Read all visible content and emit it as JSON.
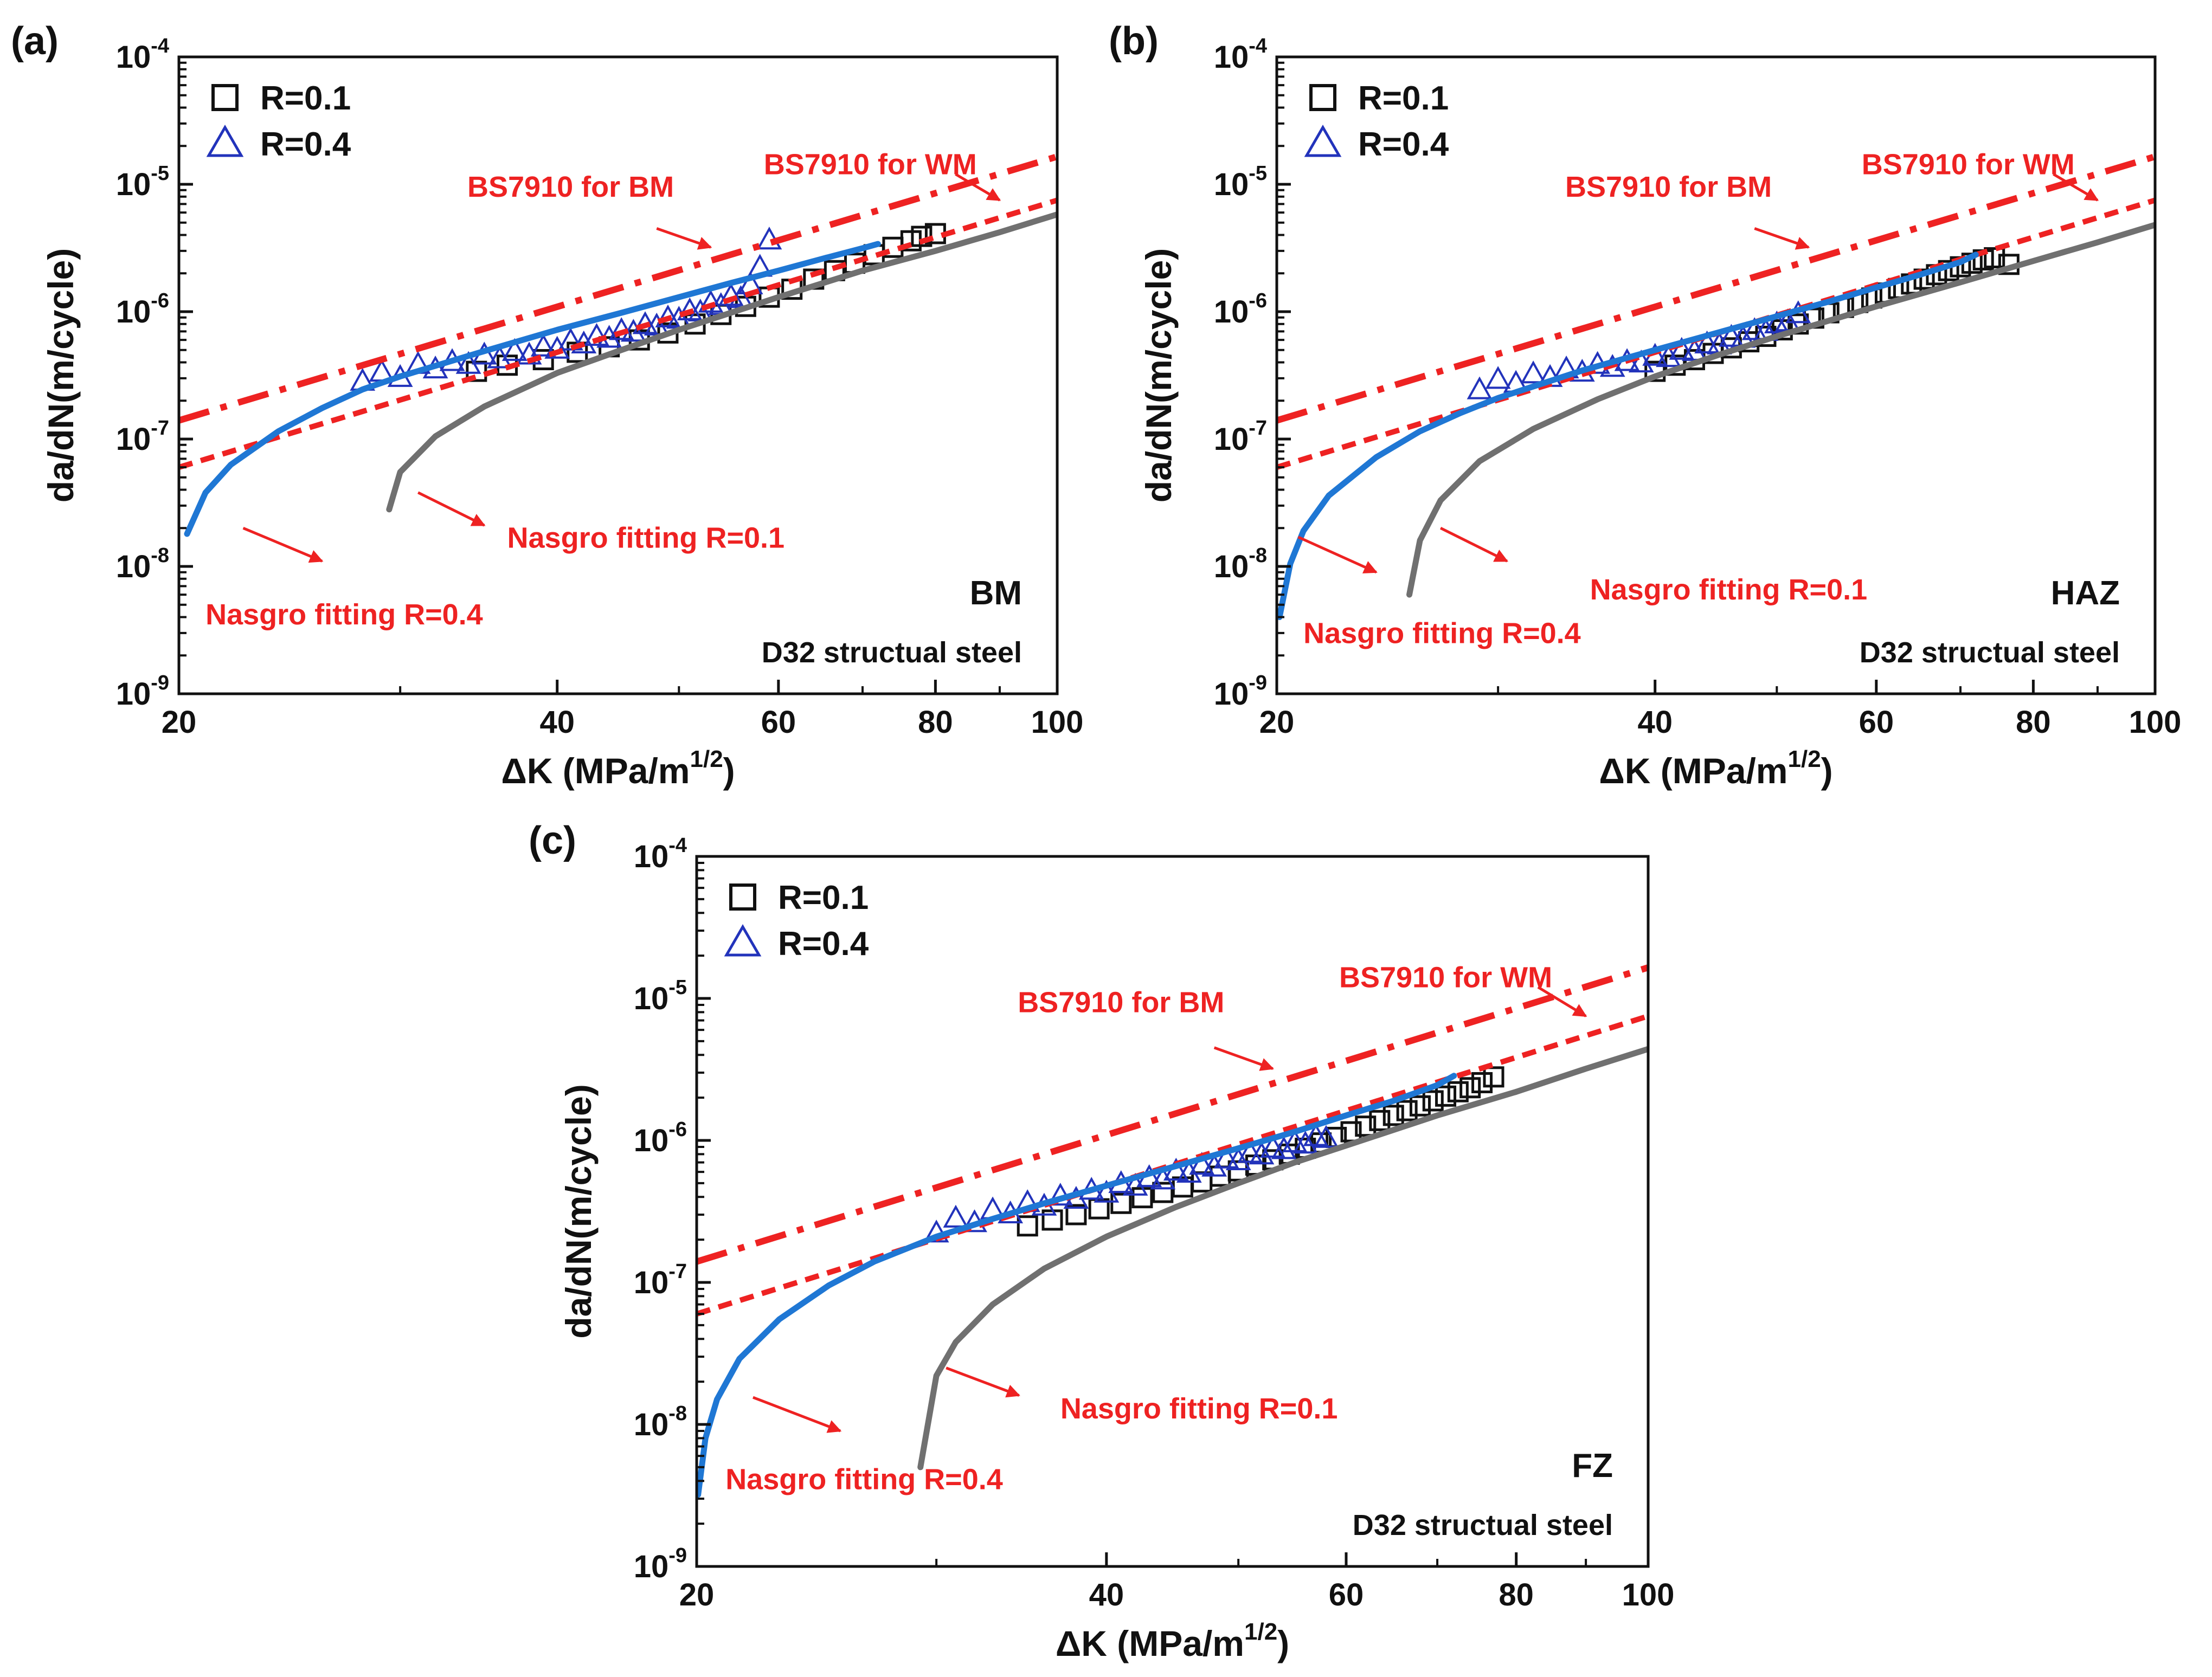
{
  "styles": {
    "r01_marker_color": "#111111",
    "r04_marker_color": "#2233bb",
    "bs7910_color": "#ee2222",
    "annotation_color": "#ee2222",
    "nasgro_r01_color": "#707070",
    "nasgro_r04_color": "#1f77d4"
  },
  "chart_data": [
    {
      "type": "scatter",
      "panel_label": "(a)",
      "region": "BM",
      "material": "D32 structual steel",
      "xlabel": "ΔK (MPa/m",
      "xlabel_sup": "1/2",
      "xlabel_close": ")",
      "ylabel": "da/dN(m/cycle)",
      "xlim": [
        20,
        100
      ],
      "ylim": [
        1e-09,
        0.0001
      ],
      "yscale": "log",
      "xticks": [
        20,
        40,
        60,
        80,
        100
      ],
      "yticks": [
        1e-09,
        1e-08,
        1e-07,
        1e-06,
        1e-05,
        0.0001
      ],
      "ytick_labels": [
        {
          "base": "10",
          "exp": "-9"
        },
        {
          "base": "10",
          "exp": "-8"
        },
        {
          "base": "10",
          "exp": "-7"
        },
        {
          "base": "10",
          "exp": "-6"
        },
        {
          "base": "10",
          "exp": "-5"
        },
        {
          "base": "10",
          "exp": "-4"
        }
      ],
      "legend": {
        "position": "top-left",
        "entries": [
          "R=0.1",
          "R=0.4"
        ]
      },
      "series": [
        {
          "name": "R=0.1",
          "kind": "markers",
          "marker": "square",
          "x": [
            34.5,
            36.5,
            39,
            41.5,
            44,
            46.5,
            49,
            51.5,
            54,
            56.5,
            59,
            61.5,
            64,
            66.5,
            69,
            71.5,
            74,
            76.5,
            78,
            80
          ],
          "y": [
            3.4e-07,
            3.8e-07,
            4.2e-07,
            4.8e-07,
            5.3e-07,
            6e-07,
            6.8e-07,
            8e-07,
            9.5e-07,
            1.1e-06,
            1.3e-06,
            1.5e-06,
            1.8e-06,
            2.1e-06,
            2.4e-06,
            2.8e-06,
            3.2e-06,
            3.6e-06,
            3.9e-06,
            4.1e-06
          ]
        },
        {
          "name": "R=0.4",
          "kind": "markers",
          "marker": "triangle",
          "x": [
            28,
            29,
            30,
            31,
            32,
            33,
            34,
            35,
            36,
            37,
            38,
            39,
            40,
            41,
            42,
            43,
            44,
            45,
            46,
            47,
            48,
            49,
            50,
            51,
            52,
            53,
            54,
            55,
            56,
            57,
            58,
            59
          ],
          "y": [
            2.8e-07,
            3.3e-07,
            3e-07,
            3.8e-07,
            3.5e-07,
            4e-07,
            3.8e-07,
            4.5e-07,
            4.2e-07,
            4.8e-07,
            4.5e-07,
            5.2e-07,
            5e-07,
            5.8e-07,
            5.5e-07,
            6.3e-07,
            6.1e-07,
            7e-07,
            6.8e-07,
            7.8e-07,
            7.6e-07,
            8.8e-07,
            8.6e-07,
            1e-06,
            9.8e-07,
            1.15e-06,
            1.1e-06,
            1.3e-06,
            1.25e-06,
            1.6e-06,
            2.2e-06,
            3.6e-06
          ]
        },
        {
          "name": "BS7910 for WM",
          "kind": "line",
          "style": "dashdot",
          "x": [
            20,
            100
          ],
          "y": [
            1.4e-07,
            1.65e-05
          ]
        },
        {
          "name": "BS7910 for BM",
          "kind": "line",
          "style": "dashed",
          "x": [
            20,
            100
          ],
          "y": [
            6e-08,
            7.5e-06
          ]
        },
        {
          "name": "Nasgro fitting R=0.1",
          "kind": "line",
          "style": "solid",
          "x": [
            29.4,
            30,
            32,
            35,
            40,
            45,
            50,
            60,
            70,
            80,
            90,
            100
          ],
          "y": [
            2.8e-08,
            5.5e-08,
            1.05e-07,
            1.8e-07,
            3.3e-07,
            5e-07,
            7.2e-07,
            1.3e-06,
            2.1e-06,
            3e-06,
            4.2e-06,
            5.8e-06
          ]
        },
        {
          "name": "Nasgro fitting R=0.4",
          "kind": "line",
          "style": "solid",
          "x": [
            20.3,
            21,
            22,
            24,
            26,
            28,
            30,
            35,
            40,
            45,
            50,
            55,
            60,
            65,
            70,
            72
          ],
          "y": [
            1.8e-08,
            3.8e-08,
            6.3e-08,
            1.15e-07,
            1.75e-07,
            2.45e-07,
            3.1e-07,
            4.9e-07,
            7.2e-07,
            9.8e-07,
            1.3e-06,
            1.68e-06,
            2.1e-06,
            2.6e-06,
            3.15e-06,
            3.4e-06
          ]
        }
      ],
      "annotations": [
        {
          "text": "BS7910 for WM",
          "x": 71,
          "y": 1.2e-05,
          "anchor": "middle",
          "arrow": {
            "x1": 83,
            "y1": 1.2e-05,
            "x2": 90,
            "y2": 7.5e-06
          }
        },
        {
          "text": "BS7910 for BM",
          "x": 41,
          "y": 8e-06,
          "anchor": "middle",
          "arrow": {
            "x1": 48,
            "y1": 4.5e-06,
            "x2": 53,
            "y2": 3.2e-06
          }
        },
        {
          "text": "Nasgro fitting R=0.1",
          "x": 36.5,
          "y": 1.4e-08,
          "anchor": "start",
          "arrow": {
            "x1": 31,
            "y1": 3.8e-08,
            "x2": 35,
            "y2": 2.1e-08
          }
        },
        {
          "text": "Nasgro fitting R=0.4",
          "x": 21,
          "y": 3.5e-09,
          "anchor": "start",
          "arrow": {
            "x1": 22.5,
            "y1": 2e-08,
            "x2": 26,
            "y2": 1.1e-08
          }
        }
      ]
    },
    {
      "type": "scatter",
      "panel_label": "(b)",
      "region": "HAZ",
      "material": "D32 structual steel",
      "xlabel": "ΔK (MPa/m",
      "xlabel_sup": "1/2",
      "xlabel_close": ")",
      "ylabel": "da/dN(m/cycle)",
      "xlim": [
        20,
        100
      ],
      "ylim": [
        1e-09,
        0.0001
      ],
      "yscale": "log",
      "xticks": [
        20,
        40,
        60,
        80,
        100
      ],
      "yticks": [
        1e-09,
        1e-08,
        1e-07,
        1e-06,
        1e-05,
        0.0001
      ],
      "ytick_labels": [
        {
          "base": "10",
          "exp": "-9"
        },
        {
          "base": "10",
          "exp": "-8"
        },
        {
          "base": "10",
          "exp": "-7"
        },
        {
          "base": "10",
          "exp": "-6"
        },
        {
          "base": "10",
          "exp": "-5"
        },
        {
          "base": "10",
          "exp": "-4"
        }
      ],
      "legend": {
        "position": "top-left",
        "entries": [
          "R=0.1",
          "R=0.4"
        ]
      },
      "series": [
        {
          "name": "R=0.1",
          "kind": "markers",
          "marker": "square",
          "x": [
            40,
            41.5,
            43,
            44.5,
            46,
            47.5,
            49,
            50.5,
            52,
            53.5,
            55,
            56.5,
            58,
            59.5,
            61,
            62.5,
            64,
            65.5,
            67,
            68.5,
            70,
            71.5,
            73,
            74.5,
            76.5
          ],
          "y": [
            3.4e-07,
            3.8e-07,
            4.2e-07,
            4.7e-07,
            5.2e-07,
            5.8e-07,
            6.4e-07,
            7.2e-07,
            8e-07,
            8.9e-07,
            9.8e-07,
            1.08e-06,
            1.18e-06,
            1.28e-06,
            1.4e-06,
            1.52e-06,
            1.65e-06,
            1.8e-06,
            1.95e-06,
            2.1e-06,
            2.25e-06,
            2.4e-06,
            2.55e-06,
            2.65e-06,
            2.35e-06
          ]
        },
        {
          "name": "R=0.4",
          "kind": "markers",
          "marker": "triangle",
          "x": [
            29,
            30,
            31,
            32,
            33,
            34,
            35,
            36,
            37,
            38,
            39,
            40,
            41,
            42,
            43,
            44,
            45,
            46,
            47,
            48,
            49,
            50,
            51,
            52
          ],
          "y": [
            2.4e-07,
            2.9e-07,
            2.7e-07,
            3.2e-07,
            3e-07,
            3.5e-07,
            3.3e-07,
            3.8e-07,
            3.6e-07,
            4e-07,
            3.9e-07,
            4.4e-07,
            4.3e-07,
            4.9e-07,
            4.8e-07,
            5.5e-07,
            5.4e-07,
            6.2e-07,
            6.1e-07,
            7e-07,
            6.9e-07,
            7.9e-07,
            8.2e-07,
            9.5e-07
          ]
        },
        {
          "name": "BS7910 for WM",
          "kind": "line",
          "style": "dashdot",
          "x": [
            20,
            100
          ],
          "y": [
            1.4e-07,
            1.65e-05
          ]
        },
        {
          "name": "BS7910 for BM",
          "kind": "line",
          "style": "dashed",
          "x": [
            20,
            100
          ],
          "y": [
            6e-08,
            7.5e-06
          ]
        },
        {
          "name": "Nasgro fitting R=0.1",
          "kind": "line",
          "style": "solid",
          "x": [
            25.5,
            26,
            27,
            29,
            32,
            36,
            40,
            45,
            50,
            60,
            70,
            80,
            90,
            100
          ],
          "y": [
            6e-09,
            1.6e-08,
            3.3e-08,
            6.7e-08,
            1.2e-07,
            2.05e-07,
            3.1e-07,
            4.6e-07,
            6.4e-07,
            1.1e-06,
            1.7e-06,
            2.5e-06,
            3.5e-06,
            4.8e-06
          ]
        },
        {
          "name": "Nasgro fitting R=0.4",
          "kind": "line",
          "style": "solid",
          "x": [
            20.1,
            20.5,
            21,
            22,
            24,
            26,
            28,
            30,
            35,
            40,
            45,
            50,
            55,
            60,
            65,
            70,
            72
          ],
          "y": [
            4e-09,
            1.05e-08,
            1.9e-08,
            3.6e-08,
            7.2e-08,
            1.15e-07,
            1.6e-07,
            2.1e-07,
            3.45e-07,
            5e-07,
            6.9e-07,
            9.2e-07,
            1.2e-06,
            1.55e-06,
            1.95e-06,
            2.45e-06,
            2.8e-06
          ]
        }
      ],
      "annotations": [
        {
          "text": "BS7910 for WM",
          "x": 71,
          "y": 1.2e-05,
          "anchor": "middle",
          "arrow": {
            "x1": 83,
            "y1": 1.2e-05,
            "x2": 90,
            "y2": 7.5e-06
          }
        },
        {
          "text": "BS7910 for BM",
          "x": 41,
          "y": 8e-06,
          "anchor": "middle",
          "arrow": {
            "x1": 48,
            "y1": 4.5e-06,
            "x2": 53,
            "y2": 3.2e-06
          }
        },
        {
          "text": "Nasgro fitting R=0.1",
          "x": 35.5,
          "y": 5.5e-09,
          "anchor": "start",
          "arrow": {
            "x1": 27,
            "y1": 2e-08,
            "x2": 30.5,
            "y2": 1.1e-08
          }
        },
        {
          "text": "Nasgro fitting R=0.4",
          "x": 21,
          "y": 2.5e-09,
          "anchor": "start",
          "arrow": {
            "x1": 20.8,
            "y1": 1.7e-08,
            "x2": 24,
            "y2": 9e-09
          }
        }
      ]
    },
    {
      "type": "scatter",
      "panel_label": "(c)",
      "region": "FZ",
      "material": "D32 structual steel",
      "xlabel": "ΔK (MPa/m",
      "xlabel_sup": "1/2",
      "xlabel_close": ")",
      "ylabel": "da/dN(m/cycle)",
      "xlim": [
        20,
        100
      ],
      "ylim": [
        1e-09,
        0.0001
      ],
      "yscale": "log",
      "xticks": [
        20,
        40,
        60,
        80,
        100
      ],
      "yticks": [
        1e-09,
        1e-08,
        1e-07,
        1e-06,
        1e-05,
        0.0001
      ],
      "ytick_labels": [
        {
          "base": "10",
          "exp": "-9"
        },
        {
          "base": "10",
          "exp": "-8"
        },
        {
          "base": "10",
          "exp": "-7"
        },
        {
          "base": "10",
          "exp": "-6"
        },
        {
          "base": "10",
          "exp": "-5"
        },
        {
          "base": "10",
          "exp": "-4"
        }
      ],
      "legend": {
        "position": "top-left",
        "entries": [
          "R=0.1",
          "R=0.4"
        ]
      },
      "series": [
        {
          "name": "R=0.1",
          "kind": "markers",
          "marker": "square",
          "x": [
            35,
            36.5,
            38,
            39.5,
            41,
            42.5,
            44,
            45.5,
            47,
            48.5,
            50,
            51.5,
            53,
            54.5,
            56,
            57.5,
            59,
            60.5,
            62,
            63.5,
            65,
            66.5,
            68,
            69.5,
            71,
            72.5,
            74,
            75.5,
            77
          ],
          "y": [
            2.5e-07,
            2.75e-07,
            3e-07,
            3.3e-07,
            3.6e-07,
            3.95e-07,
            4.3e-07,
            4.7e-07,
            5.1e-07,
            5.6e-07,
            6.1e-07,
            6.7e-07,
            7.3e-07,
            8e-07,
            8.8e-07,
            9.6e-07,
            1.05e-06,
            1.15e-06,
            1.26e-06,
            1.38e-06,
            1.5e-06,
            1.62e-06,
            1.75e-06,
            1.9e-06,
            2.05e-06,
            2.2e-06,
            2.35e-06,
            2.55e-06,
            2.8e-06
          ]
        },
        {
          "name": "R=0.4",
          "kind": "markers",
          "marker": "triangle",
          "x": [
            30,
            31,
            32,
            33,
            34,
            35,
            36,
            37,
            38,
            39,
            40,
            41,
            42,
            43,
            44,
            45,
            46,
            47,
            48,
            49,
            50,
            51,
            52,
            53,
            54,
            55,
            56,
            57,
            58
          ],
          "y": [
            2.2e-07,
            2.8e-07,
            2.6e-07,
            3.2e-07,
            3e-07,
            3.6e-07,
            3.4e-07,
            4e-07,
            3.8e-07,
            4.4e-07,
            4.2e-07,
            4.9e-07,
            4.7e-07,
            5.4e-07,
            5.2e-07,
            6e-07,
            5.8e-07,
            6.6e-07,
            6.4e-07,
            7.3e-07,
            7.1e-07,
            8e-07,
            7.8e-07,
            8.7e-07,
            8.5e-07,
            9.5e-07,
            9.3e-07,
            1.05e-06,
            1.02e-06
          ]
        },
        {
          "name": "BS7910 for WM",
          "kind": "line",
          "style": "dashdot",
          "x": [
            20,
            100
          ],
          "y": [
            1.4e-07,
            1.65e-05
          ]
        },
        {
          "name": "BS7910 for BM",
          "kind": "line",
          "style": "dashed",
          "x": [
            20,
            100
          ],
          "y": [
            6e-08,
            7.5e-06
          ]
        },
        {
          "name": "Nasgro fitting R=0.1",
          "kind": "line",
          "style": "solid",
          "x": [
            29.2,
            30,
            31,
            33,
            36,
            40,
            45,
            50,
            55,
            60,
            70,
            80,
            90,
            100
          ],
          "y": [
            5e-09,
            2.2e-08,
            3.8e-08,
            7e-08,
            1.25e-07,
            2.1e-07,
            3.4e-07,
            5e-07,
            7e-07,
            9.2e-07,
            1.5e-06,
            2.2e-06,
            3.2e-06,
            4.4e-06
          ]
        },
        {
          "name": "Nasgro fitting R=0.4",
          "kind": "line",
          "style": "solid",
          "x": [
            20.05,
            20.3,
            20.7,
            21.5,
            23,
            25,
            27,
            30,
            33,
            36,
            40,
            45,
            50,
            55,
            60,
            65,
            70,
            72
          ],
          "y": [
            3.2e-09,
            8e-09,
            1.5e-08,
            2.9e-08,
            5.5e-08,
            9.5e-08,
            1.4e-07,
            2.1e-07,
            2.8e-07,
            3.6e-07,
            4.8e-07,
            6.6e-07,
            8.8e-07,
            1.15e-06,
            1.5e-06,
            1.9e-06,
            2.45e-06,
            2.85e-06
          ]
        }
      ],
      "annotations": [
        {
          "text": "BS7910 for WM",
          "x": 71,
          "y": 1.2e-05,
          "anchor": "middle",
          "arrow": {
            "x1": 83,
            "y1": 1.2e-05,
            "x2": 90,
            "y2": 7.5e-06
          }
        },
        {
          "text": "BS7910 for BM",
          "x": 41,
          "y": 8e-06,
          "anchor": "middle",
          "arrow": {
            "x1": 48,
            "y1": 4.5e-06,
            "x2": 53,
            "y2": 3.2e-06
          }
        },
        {
          "text": "Nasgro fitting R=0.1",
          "x": 37,
          "y": 1.1e-08,
          "anchor": "start",
          "arrow": {
            "x1": 30.5,
            "y1": 2.5e-08,
            "x2": 34.5,
            "y2": 1.6e-08
          }
        },
        {
          "text": "Nasgro fitting R=0.4",
          "x": 21,
          "y": 3.5e-09,
          "anchor": "start",
          "arrow": {
            "x1": 22,
            "y1": 1.55e-08,
            "x2": 25.5,
            "y2": 9e-09
          }
        }
      ]
    }
  ]
}
